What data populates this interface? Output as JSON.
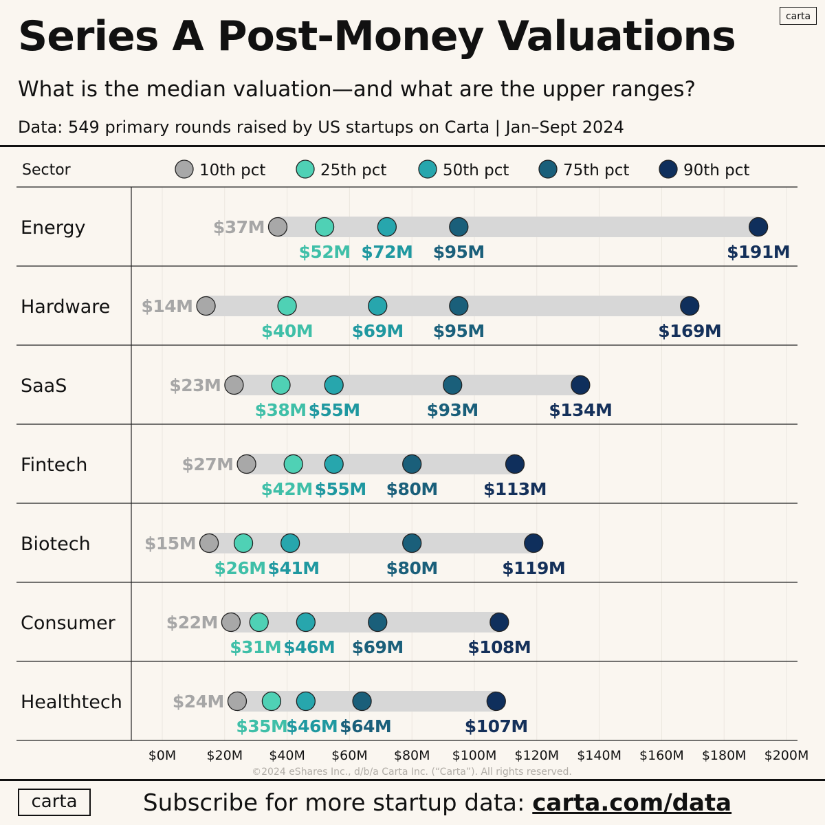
{
  "header": {
    "logo_text": "carta",
    "title": "Series A Post-Money Valuations",
    "subtitle": "What is the median valuation—and what are the upper ranges?",
    "source": "Data: 549 primary rounds raised by US startups on Carta | Jan–Sept 2024"
  },
  "footer": {
    "logo_text": "carta",
    "subscribe_text": "Subscribe for more startup data:",
    "link_text": "carta.com/data"
  },
  "chart_data": {
    "type": "dot-range",
    "title": "Series A Post-Money Valuations",
    "category_header": "Sector",
    "copyright": "©2024 eShares Inc., d/b/a Carta Inc. (“Carta”). All rights reserved.",
    "xlim": [
      0,
      200
    ],
    "x_ticks": [
      0,
      20,
      40,
      60,
      80,
      100,
      120,
      140,
      160,
      180,
      200
    ],
    "x_tick_labels": [
      "$0M",
      "$20M",
      "$40M",
      "$60M",
      "$80M",
      "$100M",
      "$120M",
      "$140M",
      "$160M",
      "$180M",
      "$200M"
    ],
    "unit": "$M",
    "series": [
      {
        "name": "10th pct",
        "color": "#a8a8a8",
        "label_color": "#a6a6a6"
      },
      {
        "name": "25th pct",
        "color": "#4fd1b5",
        "label_color": "#3fbfa8"
      },
      {
        "name": "50th pct",
        "color": "#27a6ad",
        "label_color": "#1f98a0"
      },
      {
        "name": "75th pct",
        "color": "#1a5f7a",
        "label_color": "#1a5f7a"
      },
      {
        "name": "90th pct",
        "color": "#0f2f5c",
        "label_color": "#14305a"
      }
    ],
    "sectors": [
      {
        "name": "Energy",
        "values": [
          37,
          52,
          72,
          95,
          191
        ],
        "labels": [
          "$37M",
          "$52M",
          "$72M",
          "$95M",
          "$191M"
        ]
      },
      {
        "name": "Hardware",
        "values": [
          14,
          40,
          69,
          95,
          169
        ],
        "labels": [
          "$14M",
          "$40M",
          "$69M",
          "$95M",
          "$169M"
        ]
      },
      {
        "name": "SaaS",
        "values": [
          23,
          38,
          55,
          93,
          134
        ],
        "labels": [
          "$23M",
          "$38M",
          "$55M",
          "$93M",
          "$134M"
        ]
      },
      {
        "name": "Fintech",
        "values": [
          27,
          42,
          55,
          80,
          113
        ],
        "labels": [
          "$27M",
          "$42M",
          "$55M",
          "$80M",
          "$113M"
        ]
      },
      {
        "name": "Biotech",
        "values": [
          15,
          26,
          41,
          80,
          119
        ],
        "labels": [
          "$15M",
          "$26M",
          "$41M",
          "$80M",
          "$119M"
        ]
      },
      {
        "name": "Consumer",
        "values": [
          22,
          31,
          46,
          69,
          108
        ],
        "labels": [
          "$22M",
          "$31M",
          "$46M",
          "$69M",
          "$108M"
        ]
      },
      {
        "name": "Healthtech",
        "values": [
          24,
          35,
          46,
          64,
          107
        ],
        "labels": [
          "$24M",
          "$35M",
          "$46M",
          "$64M",
          "$107M"
        ]
      }
    ]
  }
}
